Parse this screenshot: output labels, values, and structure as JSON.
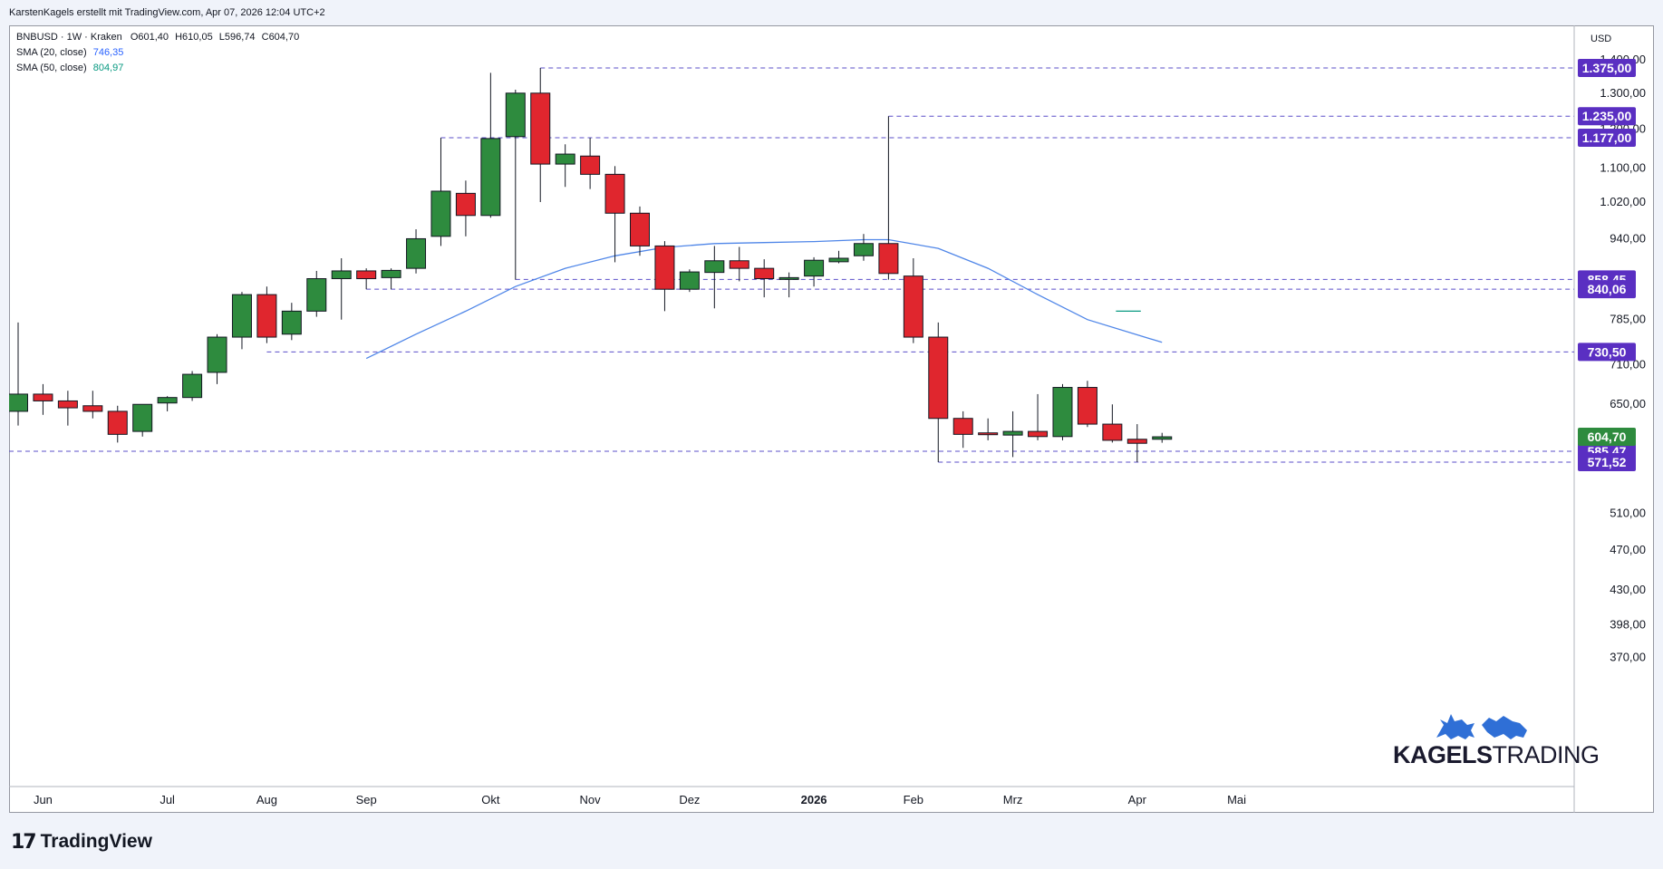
{
  "header": {
    "attribution": "KarstenKagels erstellt mit TradingView.com, Apr 07, 2026 12:04 UTC+2"
  },
  "legend": {
    "symbol_line": "BNBUSD · 1W · Kraken",
    "ohlc": {
      "o_label": "O",
      "o": "601,40",
      "h_label": "H",
      "h": "610,05",
      "l_label": "L",
      "l": "596,74",
      "c_label": "C",
      "c": "604,70"
    },
    "sma20_label": "SMA (20, close)",
    "sma20_value": "746,35",
    "sma50_label": "SMA (50, close)",
    "sma50_value": "804,97"
  },
  "branding": {
    "footer_text": "TradingView",
    "watermark_bold": "KAGELS",
    "watermark_light": "TRADING"
  },
  "colors": {
    "up": "#2e8b3e",
    "down": "#e0262e",
    "sma20": "#4f86e8",
    "level_line": "#5b4fc9",
    "level_badge": "#5a2fc2",
    "price_badge": "#2e8b3e",
    "logo_blue": "#2f6fd6"
  },
  "chart_data": {
    "type": "candlestick",
    "symbol": "BNBUSD",
    "interval": "1W",
    "exchange": "Kraken",
    "currency": "USD",
    "y_scale": "log",
    "ylim": [
      350,
      1470
    ],
    "y_ticks": [
      "1.400,00",
      "1.300,00",
      "1.100,00",
      "1.020,00",
      "940,00",
      "785,00",
      "710,00",
      "650,00",
      "510,00",
      "470,00",
      "430,00",
      "398,00",
      "370,00"
    ],
    "x_labels": [
      "Jun",
      "Jul",
      "Aug",
      "Sep",
      "Okt",
      "Nov",
      "Dez",
      "2026",
      "Feb",
      "Mrz",
      "Apr",
      "Mai"
    ],
    "candles": [
      {
        "date": "2025-05-26",
        "o": 640,
        "h": 780,
        "l": 620,
        "c": 665
      },
      {
        "date": "2025-06-02",
        "o": 665,
        "h": 680,
        "l": 635,
        "c": 655
      },
      {
        "date": "2025-06-09",
        "o": 655,
        "h": 670,
        "l": 620,
        "c": 645
      },
      {
        "date": "2025-06-16",
        "o": 648,
        "h": 670,
        "l": 630,
        "c": 640
      },
      {
        "date": "2025-06-23",
        "o": 640,
        "h": 648,
        "l": 597,
        "c": 608
      },
      {
        "date": "2025-06-30",
        "o": 612,
        "h": 650,
        "l": 605,
        "c": 650
      },
      {
        "date": "2025-07-07",
        "o": 652,
        "h": 662,
        "l": 640,
        "c": 660
      },
      {
        "date": "2025-07-14",
        "o": 660,
        "h": 700,
        "l": 655,
        "c": 695
      },
      {
        "date": "2025-07-21",
        "o": 698,
        "h": 760,
        "l": 680,
        "c": 755
      },
      {
        "date": "2025-07-28",
        "o": 755,
        "h": 835,
        "l": 735,
        "c": 830
      },
      {
        "date": "2025-08-04",
        "o": 830,
        "h": 845,
        "l": 745,
        "c": 755
      },
      {
        "date": "2025-08-11",
        "o": 760,
        "h": 815,
        "l": 750,
        "c": 800
      },
      {
        "date": "2025-08-18",
        "o": 800,
        "h": 875,
        "l": 790,
        "c": 860
      },
      {
        "date": "2025-08-25",
        "o": 860,
        "h": 900,
        "l": 785,
        "c": 875
      },
      {
        "date": "2025-09-01",
        "o": 875,
        "h": 880,
        "l": 840,
        "c": 860
      },
      {
        "date": "2025-09-08",
        "o": 862,
        "h": 880,
        "l": 840,
        "c": 876
      },
      {
        "date": "2025-09-15",
        "o": 880,
        "h": 960,
        "l": 870,
        "c": 940
      },
      {
        "date": "2025-09-22",
        "o": 945,
        "h": 1177,
        "l": 925,
        "c": 1045
      },
      {
        "date": "2025-09-29",
        "o": 1040,
        "h": 1070,
        "l": 945,
        "c": 990
      },
      {
        "date": "2025-10-06",
        "o": 990,
        "h": 1360,
        "l": 985,
        "c": 1175
      },
      {
        "date": "2025-10-13",
        "o": 1180,
        "h": 1310,
        "l": 858,
        "c": 1300
      },
      {
        "date": "2025-10-20",
        "o": 1300,
        "h": 1375,
        "l": 1020,
        "c": 1110
      },
      {
        "date": "2025-10-27",
        "o": 1110,
        "h": 1160,
        "l": 1055,
        "c": 1135
      },
      {
        "date": "2025-11-03",
        "o": 1130,
        "h": 1177,
        "l": 1050,
        "c": 1085
      },
      {
        "date": "2025-11-10",
        "o": 1085,
        "h": 1105,
        "l": 892,
        "c": 995
      },
      {
        "date": "2025-11-17",
        "o": 995,
        "h": 1010,
        "l": 905,
        "c": 925
      },
      {
        "date": "2025-11-24",
        "o": 925,
        "h": 935,
        "l": 800,
        "c": 840
      },
      {
        "date": "2025-12-01",
        "o": 840,
        "h": 878,
        "l": 835,
        "c": 873
      },
      {
        "date": "2025-12-08",
        "o": 872,
        "h": 925,
        "l": 805,
        "c": 895
      },
      {
        "date": "2025-12-15",
        "o": 895,
        "h": 923,
        "l": 855,
        "c": 880
      },
      {
        "date": "2025-12-22",
        "o": 880,
        "h": 898,
        "l": 825,
        "c": 860
      },
      {
        "date": "2025-12-29",
        "o": 860,
        "h": 872,
        "l": 825,
        "c": 862
      },
      {
        "date": "2026-01-05",
        "o": 865,
        "h": 902,
        "l": 845,
        "c": 896
      },
      {
        "date": "2026-01-12",
        "o": 893,
        "h": 915,
        "l": 890,
        "c": 900
      },
      {
        "date": "2026-01-19",
        "o": 905,
        "h": 950,
        "l": 895,
        "c": 930
      },
      {
        "date": "2026-01-26",
        "o": 930,
        "h": 1235,
        "l": 858,
        "c": 870
      },
      {
        "date": "2026-02-02",
        "o": 865,
        "h": 900,
        "l": 745,
        "c": 755
      },
      {
        "date": "2026-02-09",
        "o": 755,
        "h": 780,
        "l": 571.52,
        "c": 630
      },
      {
        "date": "2026-02-16",
        "o": 630,
        "h": 640,
        "l": 590,
        "c": 608
      },
      {
        "date": "2026-02-23",
        "o": 610,
        "h": 630,
        "l": 600,
        "c": 609
      },
      {
        "date": "2026-03-02",
        "o": 607,
        "h": 640,
        "l": 578,
        "c": 612
      },
      {
        "date": "2026-03-09",
        "o": 612,
        "h": 665,
        "l": 600,
        "c": 605
      },
      {
        "date": "2026-03-16",
        "o": 605,
        "h": 680,
        "l": 600,
        "c": 675
      },
      {
        "date": "2026-03-23",
        "o": 675,
        "h": 685,
        "l": 618,
        "c": 622
      },
      {
        "date": "2026-03-30",
        "o": 622,
        "h": 650,
        "l": 597,
        "c": 600
      },
      {
        "date": "2026-04-06",
        "o": 601.4,
        "h": 622,
        "l": 571.52,
        "c": 596
      },
      {
        "date": "2026-04-13",
        "o": 601.4,
        "h": 610.05,
        "l": 596.74,
        "c": 604.7
      }
    ],
    "sma20": [
      {
        "date": "2025-09-01",
        "v": 720
      },
      {
        "date": "2025-09-15",
        "v": 760
      },
      {
        "date": "2025-09-29",
        "v": 800
      },
      {
        "date": "2025-10-13",
        "v": 845
      },
      {
        "date": "2025-10-27",
        "v": 880
      },
      {
        "date": "2025-11-10",
        "v": 905
      },
      {
        "date": "2025-11-24",
        "v": 922
      },
      {
        "date": "2025-12-08",
        "v": 930
      },
      {
        "date": "2025-12-22",
        "v": 932
      },
      {
        "date": "2026-01-05",
        "v": 934
      },
      {
        "date": "2026-01-19",
        "v": 938
      },
      {
        "date": "2026-01-26",
        "v": 938
      },
      {
        "date": "2026-02-09",
        "v": 920
      },
      {
        "date": "2026-02-23",
        "v": 880
      },
      {
        "date": "2026-03-09",
        "v": 830
      },
      {
        "date": "2026-03-23",
        "v": 785
      },
      {
        "date": "2026-04-13",
        "v": 746.35
      }
    ],
    "levels": [
      {
        "value": 1375,
        "label": "1.375,00",
        "from": "2025-10-20"
      },
      {
        "value": 1235,
        "label": "1.235,00",
        "from": "2026-01-26"
      },
      {
        "value": 1177,
        "label": "1.177,00",
        "from": "2025-09-22"
      },
      {
        "value": 858.45,
        "label": "858,45",
        "from": "2025-10-13"
      },
      {
        "value": 840.06,
        "label": "840,06",
        "from": "2025-09-01"
      },
      {
        "value": 730.5,
        "label": "730,50",
        "from": "2025-08-04"
      },
      {
        "value": 585.47,
        "label": "585,47",
        "from": "2025-05-26"
      },
      {
        "value": 571.52,
        "label": "571,52",
        "from": "2026-02-09"
      }
    ],
    "last_price": {
      "value": 604.7,
      "label": "604,70"
    },
    "hidden_tick_behind_badge": "1.200,00",
    "marker_segment": {
      "value": 800,
      "from": "2026-03-30",
      "to": "2026-04-06"
    }
  }
}
